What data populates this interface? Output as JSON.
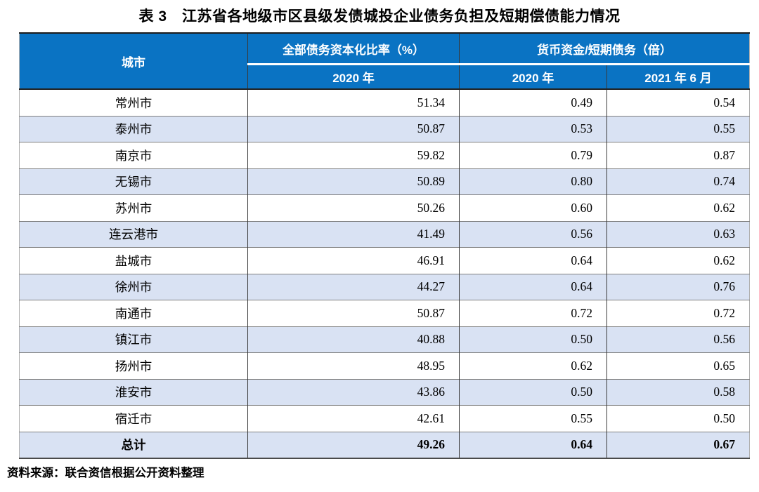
{
  "title": "表 3　江苏省各地级市区县级发债城投企业债务负担及短期偿债能力情况",
  "colors": {
    "header_bg": "#0a73c3",
    "header_text": "#ffffff",
    "stripe_row_bg": "#d9e2f3",
    "row_divider": "#7f7f7f",
    "column_divider": "#3a3a3a"
  },
  "table": {
    "header": {
      "city": "城市",
      "group_debt": "全部债务资本化比率（%）",
      "group_cash": "货币资金/短期债务（倍）",
      "sub_debt_2020": "2020 年",
      "sub_cash_2020": "2020 年",
      "sub_cash_2021": "2021 年 6 月"
    },
    "rows": [
      {
        "city": "常州市",
        "debt_ratio_2020": "51.34",
        "cash_short_2020": "0.49",
        "cash_short_2021_06": "0.54"
      },
      {
        "city": "泰州市",
        "debt_ratio_2020": "50.87",
        "cash_short_2020": "0.53",
        "cash_short_2021_06": "0.55"
      },
      {
        "city": "南京市",
        "debt_ratio_2020": "59.82",
        "cash_short_2020": "0.79",
        "cash_short_2021_06": "0.87"
      },
      {
        "city": "无锡市",
        "debt_ratio_2020": "50.89",
        "cash_short_2020": "0.80",
        "cash_short_2021_06": "0.74"
      },
      {
        "city": "苏州市",
        "debt_ratio_2020": "50.26",
        "cash_short_2020": "0.60",
        "cash_short_2021_06": "0.62"
      },
      {
        "city": "连云港市",
        "debt_ratio_2020": "41.49",
        "cash_short_2020": "0.56",
        "cash_short_2021_06": "0.63"
      },
      {
        "city": "盐城市",
        "debt_ratio_2020": "46.91",
        "cash_short_2020": "0.64",
        "cash_short_2021_06": "0.62"
      },
      {
        "city": "徐州市",
        "debt_ratio_2020": "44.27",
        "cash_short_2020": "0.64",
        "cash_short_2021_06": "0.76"
      },
      {
        "city": "南通市",
        "debt_ratio_2020": "50.87",
        "cash_short_2020": "0.72",
        "cash_short_2021_06": "0.72"
      },
      {
        "city": "镇江市",
        "debt_ratio_2020": "40.88",
        "cash_short_2020": "0.50",
        "cash_short_2021_06": "0.56"
      },
      {
        "city": "扬州市",
        "debt_ratio_2020": "48.95",
        "cash_short_2020": "0.62",
        "cash_short_2021_06": "0.65"
      },
      {
        "city": "淮安市",
        "debt_ratio_2020": "43.86",
        "cash_short_2020": "0.50",
        "cash_short_2021_06": "0.58"
      },
      {
        "city": "宿迁市",
        "debt_ratio_2020": "42.61",
        "cash_short_2020": "0.55",
        "cash_short_2021_06": "0.50"
      }
    ],
    "total": {
      "city": "总计",
      "debt_ratio_2020": "49.26",
      "cash_short_2020": "0.64",
      "cash_short_2021_06": "0.67"
    }
  },
  "footer": "资料来源：联合资信根据公开资料整理"
}
